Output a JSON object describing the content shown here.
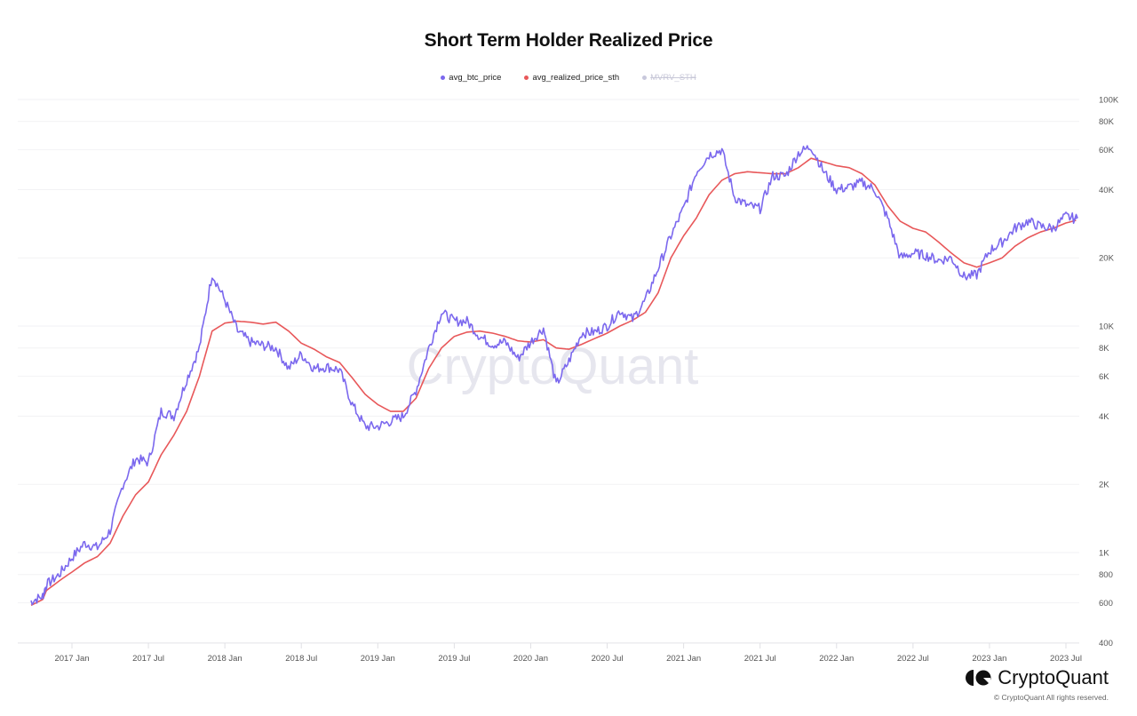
{
  "title": "Short Term Holder Realized Price",
  "legend": [
    {
      "label": "avg_btc_price",
      "color": "#7b68ee",
      "enabled": true
    },
    {
      "label": "avg_realized_price_sth",
      "color": "#e8585a",
      "enabled": true
    },
    {
      "label": "MVRV_STH",
      "color": "#c8c8dc",
      "enabled": false
    }
  ],
  "watermark": "CryptoQuant",
  "brand": {
    "name": "CryptoQuant",
    "copyright": "© CryptoQuant All rights reserved."
  },
  "chart_data": {
    "type": "line",
    "title": "Short Term Holder Realized Price",
    "xlabel": "",
    "ylabel": "",
    "yscale": "log",
    "ylim": [
      400,
      100000
    ],
    "grid": true,
    "legend_position": "top",
    "x_ticks": [
      "2017 Jan",
      "2017 Jul",
      "2018 Jan",
      "2018 Jul",
      "2019 Jan",
      "2019 Jul",
      "2020 Jan",
      "2020 Jul",
      "2021 Jan",
      "2021 Jul",
      "2022 Jan",
      "2022 Jul",
      "2023 Jan",
      "2023 Jul"
    ],
    "y_ticks": [
      "400",
      "600",
      "800",
      "1K",
      "2K",
      "4K",
      "6K",
      "8K",
      "10K",
      "20K",
      "40K",
      "60K",
      "80K",
      "100K"
    ],
    "x": [
      "2016-09",
      "2016-10",
      "2016-11",
      "2016-12",
      "2017-01",
      "2017-02",
      "2017-03",
      "2017-04",
      "2017-05",
      "2017-06",
      "2017-07",
      "2017-08",
      "2017-09",
      "2017-10",
      "2017-11",
      "2017-12",
      "2018-01",
      "2018-02",
      "2018-03",
      "2018-04",
      "2018-05",
      "2018-06",
      "2018-07",
      "2018-08",
      "2018-09",
      "2018-10",
      "2018-11",
      "2018-12",
      "2019-01",
      "2019-02",
      "2019-03",
      "2019-04",
      "2019-05",
      "2019-06",
      "2019-07",
      "2019-08",
      "2019-09",
      "2019-10",
      "2019-11",
      "2019-12",
      "2020-01",
      "2020-02",
      "2020-03",
      "2020-04",
      "2020-05",
      "2020-06",
      "2020-07",
      "2020-08",
      "2020-09",
      "2020-10",
      "2020-11",
      "2020-12",
      "2021-01",
      "2021-02",
      "2021-03",
      "2021-04",
      "2021-05",
      "2021-06",
      "2021-07",
      "2021-08",
      "2021-09",
      "2021-10",
      "2021-11",
      "2021-12",
      "2022-01",
      "2022-02",
      "2022-03",
      "2022-04",
      "2022-05",
      "2022-06",
      "2022-07",
      "2022-08",
      "2022-09",
      "2022-10",
      "2022-11",
      "2022-12",
      "2023-01",
      "2023-02",
      "2023-03",
      "2023-04",
      "2023-05",
      "2023-06",
      "2023-07",
      "2023-08"
    ],
    "series": [
      {
        "name": "avg_btc_price",
        "color": "#7b68ee",
        "values": [
          610,
          640,
          720,
          800,
          950,
          1100,
          1050,
          1250,
          2000,
          2600,
          2500,
          4200,
          4000,
          5800,
          8000,
          17000,
          13000,
          9500,
          8500,
          8200,
          8000,
          6500,
          7500,
          6500,
          6600,
          6400,
          4500,
          3600,
          3600,
          3800,
          4000,
          5200,
          8000,
          11500,
          10500,
          10500,
          9000,
          8300,
          8500,
          7200,
          8500,
          9800,
          5500,
          7000,
          9300,
          9400,
          10000,
          11700,
          10700,
          13000,
          18000,
          25000,
          33000,
          48000,
          57000,
          60000,
          37000,
          34000,
          33000,
          46000,
          46000,
          58000,
          62000,
          48000,
          40000,
          41000,
          43000,
          40000,
          30000,
          20000,
          21000,
          20500,
          19500,
          20000,
          16500,
          16800,
          21500,
          23500,
          27000,
          29000,
          27500,
          27000,
          30500,
          29500
        ]
      },
      {
        "name": "avg_realized_price_sth",
        "color": "#e8585a",
        "values": [
          585,
          620,
          680,
          750,
          820,
          900,
          960,
          1100,
          1450,
          1800,
          2050,
          2700,
          3300,
          4200,
          6000,
          9500,
          10300,
          10500,
          10400,
          10200,
          10400,
          9500,
          8400,
          7900,
          7300,
          6900,
          5900,
          5000,
          4500,
          4200,
          4200,
          4800,
          6500,
          8000,
          9000,
          9400,
          9500,
          9300,
          9000,
          8600,
          8500,
          8700,
          8000,
          7900,
          8300,
          8800,
          9300,
          10000,
          10600,
          11500,
          14000,
          20000,
          25000,
          30000,
          38000,
          44000,
          47000,
          48000,
          47500,
          47000,
          47000,
          50000,
          55000,
          53000,
          51000,
          50000,
          47000,
          42000,
          34000,
          29000,
          27000,
          26000,
          23500,
          21000,
          19000,
          18200,
          19000,
          20000,
          22500,
          24500,
          26000,
          27000,
          28500,
          29500
        ]
      }
    ]
  }
}
